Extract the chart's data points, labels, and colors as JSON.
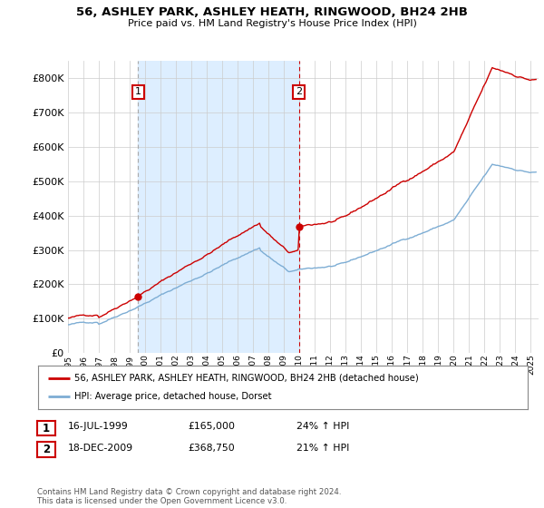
{
  "title": "56, ASHLEY PARK, ASHLEY HEATH, RINGWOOD, BH24 2HB",
  "subtitle": "Price paid vs. HM Land Registry's House Price Index (HPI)",
  "ylim": [
    0,
    850000
  ],
  "yticks": [
    0,
    100000,
    200000,
    300000,
    400000,
    500000,
    600000,
    700000,
    800000
  ],
  "ytick_labels": [
    "£0",
    "£100K",
    "£200K",
    "£300K",
    "£400K",
    "£500K",
    "£600K",
    "£700K",
    "£800K"
  ],
  "background_color": "#ffffff",
  "plot_background": "#ffffff",
  "grid_color": "#cccccc",
  "sale1_date": 1999.54,
  "sale1_price": 165000,
  "sale1_label": "1",
  "sale2_date": 2009.96,
  "sale2_price": 368750,
  "sale2_label": "2",
  "red_line_color": "#cc0000",
  "blue_line_color": "#7dadd4",
  "shade_color": "#ddeeff",
  "legend_label_red": "56, ASHLEY PARK, ASHLEY HEATH, RINGWOOD, BH24 2HB (detached house)",
  "legend_label_blue": "HPI: Average price, detached house, Dorset",
  "table_rows": [
    [
      "1",
      "16-JUL-1999",
      "£165,000",
      "24% ↑ HPI"
    ],
    [
      "2",
      "18-DEC-2009",
      "£368,750",
      "21% ↑ HPI"
    ]
  ],
  "footer": "Contains HM Land Registry data © Crown copyright and database right 2024.\nThis data is licensed under the Open Government Licence v3.0.",
  "xmin": 1995.0,
  "xmax": 2025.5,
  "xticks": [
    1995,
    1996,
    1997,
    1998,
    1999,
    2000,
    2001,
    2002,
    2003,
    2004,
    2005,
    2006,
    2007,
    2008,
    2009,
    2010,
    2011,
    2012,
    2013,
    2014,
    2015,
    2016,
    2017,
    2018,
    2019,
    2020,
    2021,
    2022,
    2023,
    2024,
    2025
  ]
}
